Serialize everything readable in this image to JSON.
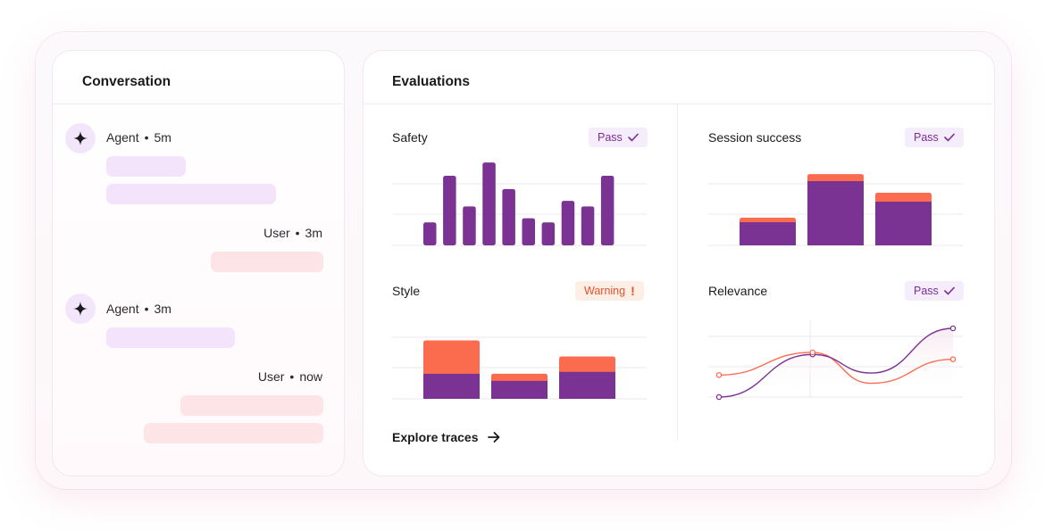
{
  "conversation": {
    "title": "Conversation",
    "messages": [
      {
        "role": "agent",
        "author": "Agent",
        "time": "5m",
        "bubbles": [
          0.58,
          1.0
        ]
      },
      {
        "role": "user",
        "author": "User",
        "time": "3m",
        "bubbles": [
          1.0
        ]
      },
      {
        "role": "agent",
        "author": "Agent",
        "time": "3m",
        "bubbles": [
          1.0
        ]
      },
      {
        "role": "user",
        "author": "User",
        "time": "now",
        "bubbles": [
          0.79,
          1.0
        ]
      }
    ],
    "separator": "•"
  },
  "evaluations": {
    "title": "Evaluations",
    "explore_label": "Explore traces",
    "explore_icon": "arrow-right-icon",
    "panels": {
      "safety": {
        "title": "Safety",
        "status": "Pass",
        "status_icon": "check-icon"
      },
      "session_success": {
        "title": "Session success",
        "status": "Pass",
        "status_icon": "check-icon"
      },
      "style": {
        "title": "Style",
        "status": "Warning",
        "status_symbol": "!"
      },
      "relevance": {
        "title": "Relevance",
        "status": "Pass",
        "status_icon": "check-icon"
      }
    }
  },
  "colors": {
    "purple": "#7a3293",
    "orange": "#fb6c4f",
    "pass_text": "#7a2f94",
    "warn_text": "#e4542c"
  },
  "chart_data": [
    {
      "id": "safety",
      "type": "bar",
      "values": [
        0.33,
        1.0,
        0.56,
        1.19,
        0.81,
        0.39,
        0.33,
        0.64,
        0.56,
        1.0
      ],
      "ylim": [
        0,
        1.2
      ],
      "grid": true
    },
    {
      "id": "session_success",
      "type": "bar",
      "stacked": true,
      "series": [
        {
          "values": [
            0.36,
            1.0,
            0.68
          ]
        },
        {
          "values": [
            0.07,
            0.11,
            0.14
          ]
        }
      ],
      "ylim": [
        0,
        1.2
      ],
      "grid": true
    },
    {
      "id": "style",
      "type": "bar",
      "stacked": true,
      "series": [
        {
          "values": [
            0.39,
            0.28,
            0.42
          ]
        },
        {
          "values": [
            0.52,
            0.11,
            0.24
          ]
        }
      ],
      "ylim": [
        0,
        1.2
      ],
      "grid": true
    },
    {
      "id": "relevance",
      "type": "line",
      "x": [
        0,
        0.4,
        0.65,
        1.0
      ],
      "series": [
        {
          "values": [
            0.0,
            0.62,
            0.35,
            1.0
          ],
          "color_key": "purple"
        },
        {
          "values": [
            0.32,
            0.65,
            0.2,
            0.55
          ],
          "color_key": "orange"
        }
      ],
      "ylim": [
        0,
        1.0
      ],
      "grid": true
    }
  ]
}
